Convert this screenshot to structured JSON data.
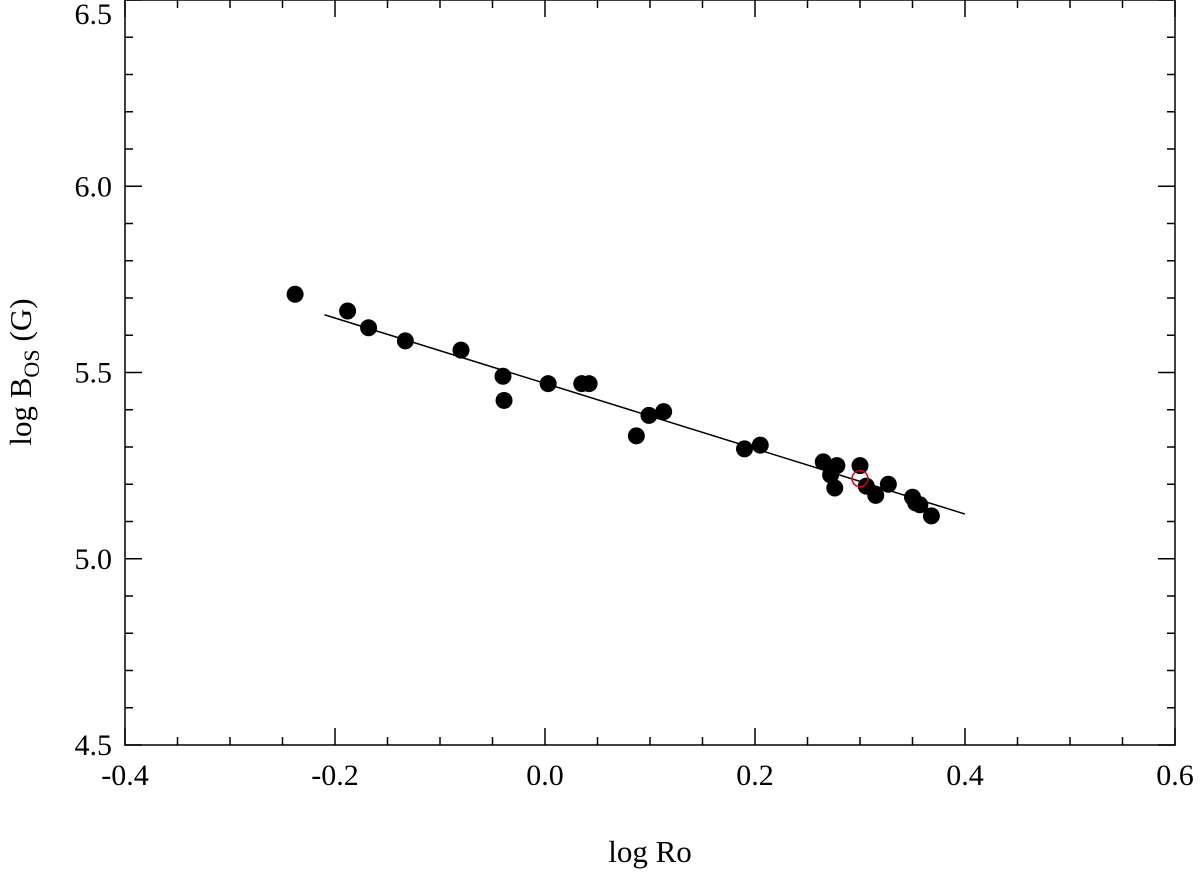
{
  "chart_data": {
    "type": "scatter",
    "xlabel": "log Ro",
    "ylabel": {
      "main": "log B",
      "subscript": "OS",
      "unit": "(G)"
    },
    "xlim": [
      -0.4,
      0.6
    ],
    "ylim": [
      4.5,
      6.5
    ],
    "x_ticks": [
      "-0.4",
      "-0.2",
      "0.0",
      "0.2",
      "0.4",
      "0.6"
    ],
    "y_ticks": [
      "4.5",
      "5.0",
      "5.5",
      "6.0",
      "6.5"
    ],
    "grid": false,
    "series": [
      {
        "marker": "filled-circle",
        "color": "#000000",
        "points": [
          [
            -0.238,
            5.71
          ],
          [
            -0.188,
            5.665
          ],
          [
            -0.168,
            5.62
          ],
          [
            -0.133,
            5.585
          ],
          [
            -0.08,
            5.56
          ],
          [
            -0.04,
            5.49
          ],
          [
            -0.039,
            5.425
          ],
          [
            0.003,
            5.47
          ],
          [
            0.035,
            5.47
          ],
          [
            0.042,
            5.47
          ],
          [
            0.087,
            5.33
          ],
          [
            0.099,
            5.385
          ],
          [
            0.113,
            5.395
          ],
          [
            0.19,
            5.295
          ],
          [
            0.205,
            5.305
          ],
          [
            0.265,
            5.26
          ],
          [
            0.272,
            5.225
          ],
          [
            0.276,
            5.19
          ],
          [
            0.278,
            5.25
          ],
          [
            0.3,
            5.25
          ],
          [
            0.306,
            5.195
          ],
          [
            0.315,
            5.17
          ],
          [
            0.327,
            5.2
          ],
          [
            0.35,
            5.165
          ],
          [
            0.353,
            5.15
          ],
          [
            0.357,
            5.145
          ],
          [
            0.368,
            5.115
          ]
        ]
      },
      {
        "marker": "open-circle",
        "color": "#e00000",
        "points": [
          [
            0.3,
            5.215
          ]
        ]
      }
    ],
    "fit_line": {
      "x": [
        -0.21,
        0.4
      ],
      "y": [
        5.655,
        5.12
      ],
      "color": "#000000"
    }
  }
}
